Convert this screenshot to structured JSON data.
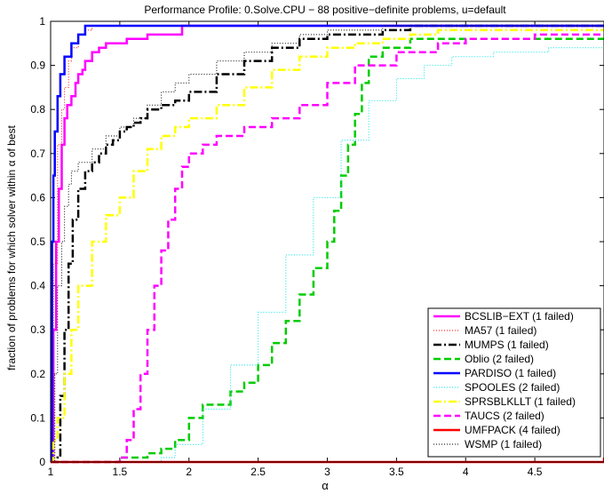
{
  "chart_data": {
    "type": "line",
    "title": "Performance Profile: 0.Solve.CPU − 88 positive−definite problems, u=default",
    "xlabel": "α",
    "ylabel": "fraction of problems for which solver within α of best",
    "xlim": [
      1,
      5
    ],
    "ylim": [
      0,
      1
    ],
    "xticks": [
      1,
      1.5,
      2,
      2.5,
      3,
      3.5,
      4,
      4.5
    ],
    "xtick_labels": [
      "1",
      "1.5",
      "2",
      "2.5",
      "3",
      "3.5",
      "4",
      "4.5"
    ],
    "yticks": [
      0,
      0.1,
      0.2,
      0.3,
      0.4,
      0.5,
      0.6,
      0.7,
      0.8,
      0.9,
      1
    ],
    "ytick_labels": [
      "0",
      "0.1",
      "0.2",
      "0.3",
      "0.4",
      "0.5",
      "0.6",
      "0.7",
      "0.8",
      "0.9",
      "1"
    ],
    "grid": false,
    "legend_position": "bottom-right",
    "series": [
      {
        "name": "BCSLIB−EXT (1 failed)",
        "color": "#ff00ff",
        "dash": "solid",
        "width": 2.5,
        "x": [
          1.0,
          1.02,
          1.04,
          1.06,
          1.08,
          1.1,
          1.12,
          1.15,
          1.18,
          1.2,
          1.23,
          1.25,
          1.3,
          1.35,
          1.4,
          1.55,
          1.7,
          1.95,
          5.0
        ],
        "y": [
          0.0,
          0.3,
          0.5,
          0.62,
          0.72,
          0.78,
          0.81,
          0.83,
          0.86,
          0.88,
          0.89,
          0.91,
          0.93,
          0.94,
          0.95,
          0.96,
          0.97,
          0.99,
          0.99
        ]
      },
      {
        "name": "MA57 (1 failed)",
        "color": "#ff0000",
        "dash": "1,2",
        "width": 1,
        "x": [
          1.0,
          1.02,
          1.05,
          1.08,
          1.1,
          1.13,
          1.15,
          1.2,
          1.25,
          1.3,
          5.0
        ],
        "y": [
          0.0,
          0.45,
          0.72,
          0.8,
          0.85,
          0.91,
          0.94,
          0.97,
          0.98,
          0.99,
          0.99
        ]
      },
      {
        "name": "MUMPS (1 failed)",
        "color": "#000000",
        "dash": "9,3,2,3",
        "width": 2.5,
        "x": [
          1.0,
          1.05,
          1.07,
          1.1,
          1.13,
          1.16,
          1.2,
          1.25,
          1.3,
          1.35,
          1.4,
          1.45,
          1.5,
          1.55,
          1.6,
          1.65,
          1.7,
          1.8,
          1.9,
          2.0,
          2.2,
          2.4,
          2.6,
          2.8,
          3.0,
          3.2,
          3.4,
          3.6,
          5.0
        ],
        "y": [
          0.0,
          0.01,
          0.15,
          0.3,
          0.45,
          0.55,
          0.62,
          0.66,
          0.68,
          0.7,
          0.72,
          0.73,
          0.75,
          0.76,
          0.77,
          0.78,
          0.8,
          0.81,
          0.82,
          0.84,
          0.88,
          0.91,
          0.94,
          0.96,
          0.97,
          0.97,
          0.98,
          0.99,
          0.99
        ]
      },
      {
        "name": "Oblio (2 failed)",
        "color": "#00cc00",
        "dash": "8,4",
        "width": 2.5,
        "x": [
          1.0,
          1.5,
          1.7,
          1.8,
          1.9,
          2.0,
          2.1,
          2.3,
          2.4,
          2.5,
          2.6,
          2.7,
          2.8,
          2.9,
          3.0,
          3.05,
          3.1,
          3.15,
          3.2,
          3.25,
          3.3,
          3.4,
          3.6,
          5.0
        ],
        "y": [
          0.0,
          0.01,
          0.02,
          0.03,
          0.05,
          0.1,
          0.13,
          0.16,
          0.18,
          0.22,
          0.27,
          0.32,
          0.38,
          0.44,
          0.5,
          0.57,
          0.65,
          0.72,
          0.79,
          0.86,
          0.92,
          0.94,
          0.96,
          0.97
        ]
      },
      {
        "name": "PARDISO (1 failed)",
        "color": "#0000ff",
        "dash": "solid",
        "width": 2.5,
        "x": [
          1.0,
          1.01,
          1.02,
          1.03,
          1.05,
          1.07,
          1.1,
          1.15,
          1.2,
          1.25,
          1.3,
          5.0
        ],
        "y": [
          0.0,
          0.5,
          0.65,
          0.75,
          0.83,
          0.88,
          0.92,
          0.95,
          0.97,
          0.99,
          0.99,
          0.99
        ]
      },
      {
        "name": "SPOOLES (2 failed)",
        "color": "#00e5e5",
        "dash": "1,2",
        "width": 1,
        "x": [
          1.0,
          1.8,
          1.9,
          2.1,
          2.3,
          2.5,
          2.7,
          2.9,
          3.1,
          3.3,
          3.5,
          3.7,
          3.9,
          4.2,
          4.6,
          5.0
        ],
        "y": [
          0.0,
          0.01,
          0.04,
          0.12,
          0.22,
          0.34,
          0.47,
          0.6,
          0.73,
          0.82,
          0.87,
          0.9,
          0.92,
          0.93,
          0.94,
          0.94
        ]
      },
      {
        "name": "SPRSBLKLLT (1 failed)",
        "color": "#ffff00",
        "dash": "9,3,2,3",
        "width": 2.5,
        "x": [
          1.0,
          1.02,
          1.05,
          1.1,
          1.15,
          1.2,
          1.3,
          1.4,
          1.5,
          1.6,
          1.7,
          1.8,
          1.9,
          2.0,
          2.2,
          2.4,
          2.6,
          2.8,
          3.0,
          3.2,
          3.4,
          3.6,
          3.8,
          5.0
        ],
        "y": [
          0.0,
          0.05,
          0.1,
          0.2,
          0.3,
          0.4,
          0.5,
          0.56,
          0.6,
          0.66,
          0.71,
          0.74,
          0.76,
          0.78,
          0.81,
          0.85,
          0.89,
          0.92,
          0.94,
          0.95,
          0.96,
          0.97,
          0.98,
          0.98
        ]
      },
      {
        "name": "TAUCS (2 failed)",
        "color": "#ff00ff",
        "dash": "8,4",
        "width": 2.5,
        "x": [
          1.0,
          1.5,
          1.55,
          1.6,
          1.65,
          1.7,
          1.75,
          1.8,
          1.85,
          1.9,
          1.95,
          2.0,
          2.1,
          2.2,
          2.4,
          2.6,
          2.8,
          3.0,
          3.2,
          3.5,
          3.8,
          4.0,
          4.5,
          5.0
        ],
        "y": [
          0.0,
          0.01,
          0.05,
          0.12,
          0.2,
          0.3,
          0.4,
          0.48,
          0.55,
          0.62,
          0.67,
          0.7,
          0.72,
          0.74,
          0.76,
          0.78,
          0.81,
          0.86,
          0.9,
          0.93,
          0.95,
          0.96,
          0.97,
          0.97
        ]
      },
      {
        "name": "UMFPACK (4 failed)",
        "color": "#ff0000",
        "dash": "solid",
        "width": 2.5,
        "x": [
          1.0,
          4.98,
          5.0
        ],
        "y": [
          0.0,
          0.0,
          0.01
        ]
      },
      {
        "name": "WSMP (1 failed)",
        "color": "#000000",
        "dash": "1,2",
        "width": 1,
        "x": [
          1.0,
          1.03,
          1.05,
          1.08,
          1.1,
          1.13,
          1.15,
          1.2,
          1.3,
          1.4,
          1.5,
          1.6,
          1.7,
          1.8,
          1.9,
          2.0,
          2.2,
          2.4,
          2.6,
          2.8,
          3.0,
          3.2,
          3.4,
          5.0
        ],
        "y": [
          0.0,
          0.2,
          0.4,
          0.5,
          0.58,
          0.63,
          0.66,
          0.68,
          0.71,
          0.74,
          0.76,
          0.78,
          0.81,
          0.84,
          0.86,
          0.88,
          0.91,
          0.93,
          0.95,
          0.97,
          0.98,
          0.98,
          0.99,
          0.99
        ]
      }
    ]
  }
}
